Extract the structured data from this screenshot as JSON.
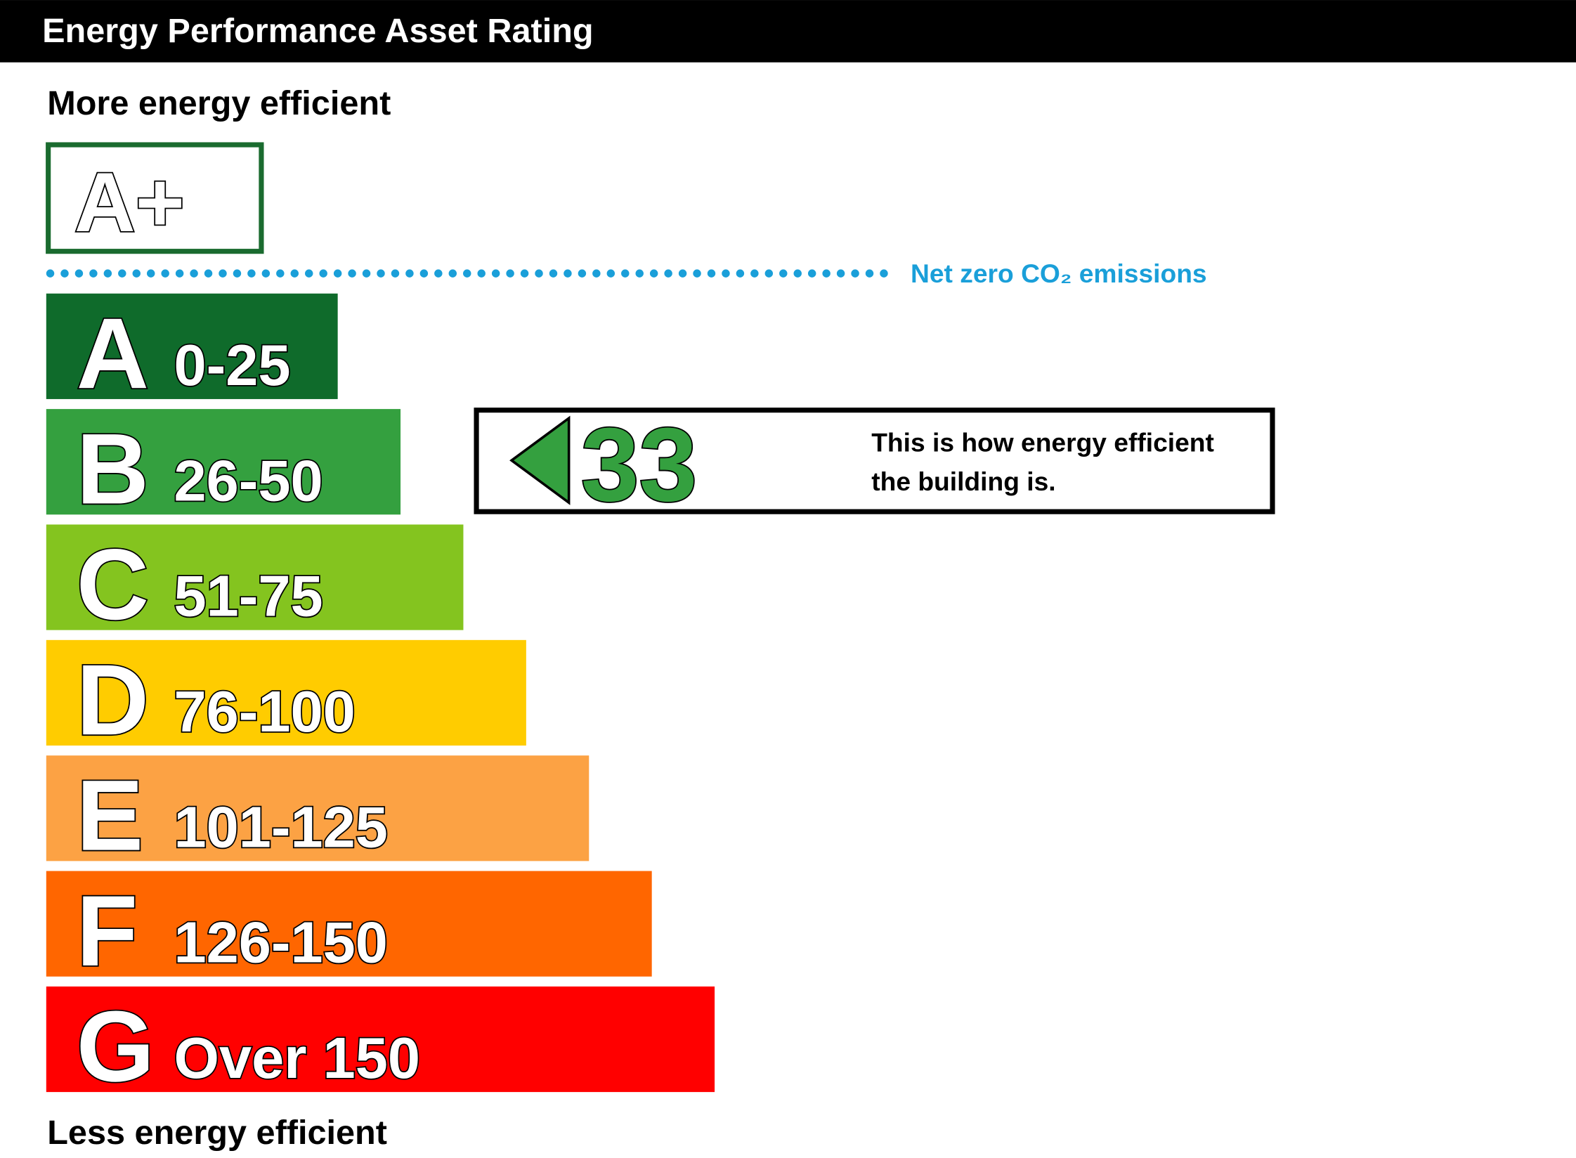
{
  "header": {
    "title": "Energy Performance Asset Rating"
  },
  "top_label": "More energy efficient",
  "bottom_label": "Less energy efficient",
  "a_plus": {
    "letter": "A+",
    "color": "#1a6b2f"
  },
  "net_zero": {
    "text": "Net zero CO₂ emissions",
    "color": "#1a9fd9"
  },
  "bands": [
    {
      "letter": "A",
      "range": "0-25",
      "color": "#0f6b2b"
    },
    {
      "letter": "B",
      "range": "26-50",
      "color": "#34a03f"
    },
    {
      "letter": "C",
      "range": "51-75",
      "color": "#84c41f"
    },
    {
      "letter": "D",
      "range": "76-100",
      "color": "#ffcc00"
    },
    {
      "letter": "E",
      "range": "101-125",
      "color": "#fca244"
    },
    {
      "letter": "F",
      "range": "126-150",
      "color": "#ff6600"
    },
    {
      "letter": "G",
      "range": "Over 150",
      "color": "#ff0000"
    }
  ],
  "rating": {
    "value": "33",
    "color": "#34a03f",
    "description": [
      "This is how energy efficient",
      "the building is."
    ]
  }
}
